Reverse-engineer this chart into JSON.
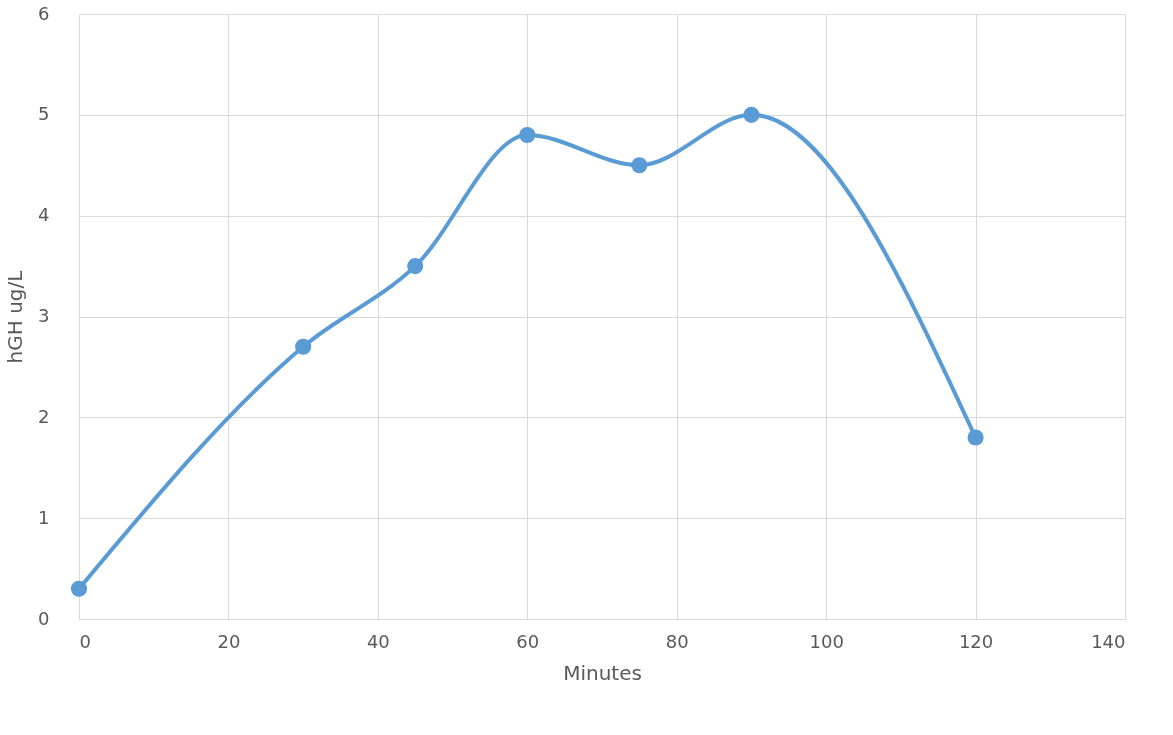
{
  "chart_data": {
    "type": "line",
    "xlabel": "Minutes",
    "ylabel": "hGH ug/L",
    "x": [
      0,
      30,
      45,
      60,
      75,
      90,
      120
    ],
    "series": [
      {
        "color": "#5b9bd5",
        "values": [
          0.3,
          2.7,
          3.5,
          4.8,
          4.5,
          5.0,
          1.8
        ]
      }
    ],
    "xlim": [
      0,
      140
    ],
    "xticks": [
      0,
      20,
      40,
      60,
      80,
      100,
      120,
      140
    ],
    "ylim": [
      0,
      6
    ],
    "yticks": [
      0,
      1,
      2,
      3,
      4,
      5,
      6
    ],
    "grid": true,
    "marker": "circle",
    "line_style": "solid"
  }
}
